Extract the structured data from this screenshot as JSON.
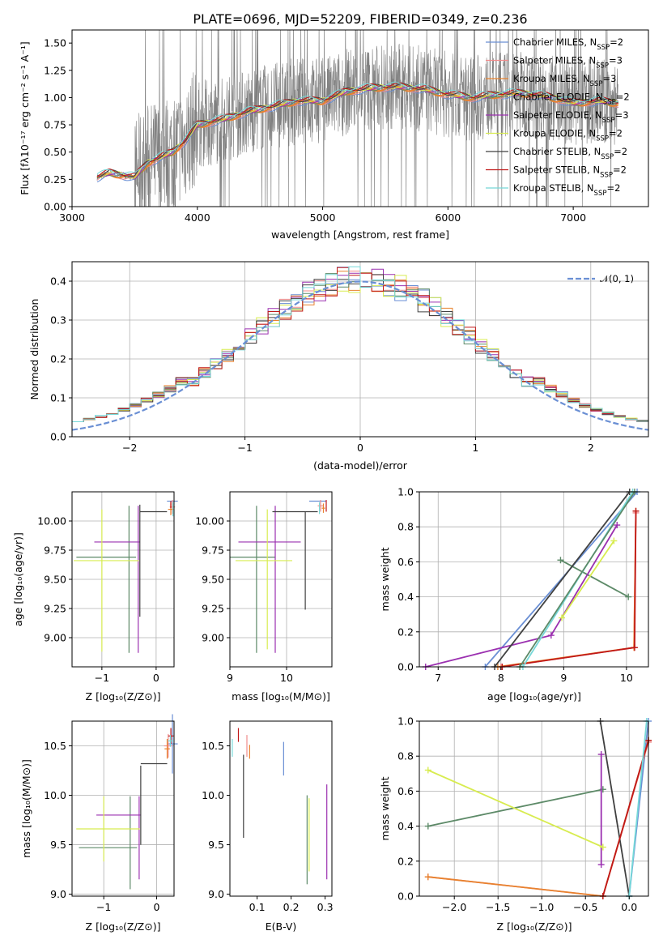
{
  "chart_data": [
    {
      "id": "spectrum",
      "type": "line",
      "title": "PLATE=0696, MJD=52209, FIBERID=0349, z=0.236",
      "xlabel": "wavelength [Angstrom, rest frame]",
      "ylabel": "Flux [fλ10⁻¹⁷ erg cm⁻² s⁻¹ A⁻¹]",
      "xlim": [
        3000,
        7600
      ],
      "ylim": [
        0,
        1.62
      ],
      "xticks": [
        3000,
        4000,
        5000,
        6000,
        7000
      ],
      "yticks": [
        0.0,
        0.25,
        0.5,
        0.75,
        1.0,
        1.25,
        1.5
      ],
      "grid": false,
      "legend_placement": "right",
      "continuum_nodes": [
        [
          3200,
          0.27
        ],
        [
          3300,
          0.31
        ],
        [
          3500,
          0.27
        ],
        [
          3600,
          0.4
        ],
        [
          3800,
          0.5
        ],
        [
          3900,
          0.6
        ],
        [
          4000,
          0.75
        ],
        [
          4200,
          0.8
        ],
        [
          4400,
          0.87
        ],
        [
          4600,
          0.92
        ],
        [
          4800,
          0.97
        ],
        [
          5000,
          0.97
        ],
        [
          5200,
          1.06
        ],
        [
          5400,
          1.09
        ],
        [
          5600,
          1.1
        ],
        [
          5800,
          1.08
        ],
        [
          6000,
          1.03
        ],
        [
          6200,
          1.0
        ],
        [
          6400,
          1.03
        ],
        [
          6600,
          1.04
        ],
        [
          6800,
          1.01
        ],
        [
          7000,
          0.95
        ],
        [
          7200,
          0.97
        ],
        [
          7350,
          0.95
        ]
      ],
      "series": [
        {
          "name": "Chabrier MILES, N",
          "sub": "SSP",
          "suffix": "=2",
          "color": "#6a8fd4"
        },
        {
          "name": "Salpeter MILES, N",
          "sub": "SSP",
          "suffix": "=3",
          "color": "#f08c8c"
        },
        {
          "name": "Kroupa MILES, N",
          "sub": "SSP",
          "suffix": "=3",
          "color": "#e8822e"
        },
        {
          "name": "Chabrier ELODIE, N",
          "sub": "SSP",
          "suffix": "=2",
          "color": "#5d8a68"
        },
        {
          "name": "Salpeter ELODIE, N",
          "sub": "SSP",
          "suffix": "=3",
          "color": "#9b30b0"
        },
        {
          "name": "Kroupa ELODIE, N",
          "sub": "SSP",
          "suffix": "=2",
          "color": "#d8ec50"
        },
        {
          "name": "Chabrier STELIB, N",
          "sub": "SSP",
          "suffix": "=2",
          "color": "#404040"
        },
        {
          "name": "Salpeter STELIB, N",
          "sub": "SSP",
          "suffix": "=2",
          "color": "#c01818"
        },
        {
          "name": "Kroupa STELIB, N",
          "sub": "SSP",
          "suffix": "=2",
          "color": "#76d8d8"
        }
      ]
    },
    {
      "id": "residuals",
      "type": "histogram",
      "xlabel": "(data-model)/error",
      "ylabel": "Normed distribution",
      "xlim": [
        -2.5,
        2.5
      ],
      "ylim": [
        0,
        0.45
      ],
      "xticks": [
        -2,
        -1,
        0,
        1,
        2
      ],
      "yticks": [
        0.0,
        0.1,
        0.2,
        0.3,
        0.4
      ],
      "grid": true,
      "bin_width": 0.1,
      "legend": "𝒩(0, 1)",
      "gauss_color": "#6a8fd4",
      "series_colors": [
        "#6a8fd4",
        "#f08c8c",
        "#e8822e",
        "#5d8a68",
        "#9b30b0",
        "#d8ec50",
        "#404040",
        "#c01818",
        "#76d8d8"
      ]
    },
    {
      "id": "age_vs_Z",
      "type": "errorbar",
      "xlabel": "Z [log₁₀(Z/Z⊙)]",
      "ylabel": "age  [log₁₀(age/yr)]",
      "xlim": [
        -1.55,
        0.33
      ],
      "ylim": [
        8.75,
        10.25
      ],
      "xticks": [
        -1,
        0
      ],
      "yticks": [
        9.0,
        9.25,
        9.5,
        9.75,
        10.0
      ],
      "grid": true,
      "points": [
        {
          "x": 0.3,
          "xerr": 0.1,
          "y": 10.17,
          "yerr": 0.0,
          "color": "#6a8fd4"
        },
        {
          "x": 0.3,
          "xerr": 0.05,
          "y": 10.12,
          "yerr": 0.06,
          "color": "#f08c8c"
        },
        {
          "x": 0.27,
          "xerr": 0.05,
          "y": 10.1,
          "yerr": 0.05,
          "color": "#e8822e"
        },
        {
          "x": -0.92,
          "xerr": 0.55,
          "y": 9.69,
          "yerr": 0.0,
          "color": "#5d8a68"
        },
        {
          "x": -0.5,
          "xerr": 0.0,
          "y": 9.5,
          "yerr": 0.63,
          "color": "#5d8a68"
        },
        {
          "x": -0.72,
          "xerr": 0.42,
          "y": 9.82,
          "yerr": 0.0,
          "color": "#9b30b0"
        },
        {
          "x": -0.33,
          "xerr": 0.0,
          "y": 9.5,
          "yerr": 0.63,
          "color": "#9b30b0"
        },
        {
          "x": -0.92,
          "xerr": 0.6,
          "y": 9.66,
          "yerr": 0.0,
          "color": "#d8ec50"
        },
        {
          "x": -1.0,
          "xerr": 0.0,
          "y": 9.49,
          "yerr": 0.61,
          "color": "#d8ec50"
        },
        {
          "x": -0.3,
          "xerr": 0.0,
          "y": 9.66,
          "yerr": 0.48,
          "color": "#404040"
        },
        {
          "x": -0.05,
          "xerr": 0.25,
          "y": 10.08,
          "yerr": 0.0,
          "color": "#404040"
        },
        {
          "x": 0.27,
          "xerr": 0.0,
          "y": 10.14,
          "yerr": 0.03,
          "color": "#c01818"
        },
        {
          "x": 0.31,
          "xerr": 0.0,
          "y": 10.1,
          "yerr": 0.06,
          "color": "#76d8d8"
        }
      ]
    },
    {
      "id": "age_vs_mass",
      "type": "errorbar",
      "xlabel": "mass [log₁₀(M/M⊙)]",
      "ylabel": "",
      "xlim": [
        9.0,
        10.8
      ],
      "ylim": [
        8.75,
        10.25
      ],
      "xticks": [
        9,
        10
      ],
      "yticks": [
        9.0,
        9.25,
        9.5,
        9.75,
        10.0
      ],
      "grid": true,
      "points": [
        {
          "x": 10.55,
          "xerr": 0.15,
          "y": 10.17,
          "yerr": 0.0,
          "color": "#6a8fd4"
        },
        {
          "x": 10.6,
          "xerr": 0.05,
          "y": 10.13,
          "yerr": 0.05,
          "color": "#f08c8c"
        },
        {
          "x": 10.65,
          "xerr": 0.03,
          "y": 10.11,
          "yerr": 0.04,
          "color": "#e8822e"
        },
        {
          "x": 9.47,
          "xerr": 0.0,
          "y": 9.5,
          "yerr": 0.63,
          "color": "#5d8a68"
        },
        {
          "x": 9.4,
          "xerr": 0.4,
          "y": 9.69,
          "yerr": 0.0,
          "color": "#5d8a68"
        },
        {
          "x": 9.7,
          "xerr": 0.55,
          "y": 9.82,
          "yerr": 0.0,
          "color": "#9b30b0"
        },
        {
          "x": 9.8,
          "xerr": 0.0,
          "y": 9.5,
          "yerr": 0.63,
          "color": "#9b30b0"
        },
        {
          "x": 9.66,
          "xerr": 0.0,
          "y": 9.5,
          "yerr": 0.6,
          "color": "#d8ec50"
        },
        {
          "x": 9.6,
          "xerr": 0.5,
          "y": 9.66,
          "yerr": 0.0,
          "color": "#d8ec50"
        },
        {
          "x": 10.33,
          "xerr": 0.0,
          "y": 9.66,
          "yerr": 0.42,
          "color": "#404040"
        },
        {
          "x": 10.15,
          "xerr": 0.4,
          "y": 10.08,
          "yerr": 0.0,
          "color": "#404040"
        },
        {
          "x": 10.7,
          "xerr": 0.0,
          "y": 10.13,
          "yerr": 0.05,
          "color": "#c01818"
        },
        {
          "x": 10.58,
          "xerr": 0.0,
          "y": 10.11,
          "yerr": 0.05,
          "color": "#76d8d8"
        }
      ]
    },
    {
      "id": "weight_vs_age",
      "type": "line",
      "xlabel": "age  [log₁₀(age/yr)]",
      "ylabel": "mass weight",
      "xlim": [
        6.7,
        10.35
      ],
      "ylim": [
        0,
        1.0
      ],
      "xticks": [
        7,
        8,
        9,
        10
      ],
      "yticks": [
        0.0,
        0.2,
        0.4,
        0.6,
        0.8,
        1.0
      ],
      "grid": true,
      "series": [
        {
          "color": "#6a8fd4",
          "points": [
            [
              7.75,
              0.0
            ],
            [
              10.17,
              1.0
            ]
          ]
        },
        {
          "color": "#f08c8c",
          "points": [
            [
              8.0,
              0.0
            ],
            [
              10.12,
              0.11
            ],
            [
              10.15,
              0.88
            ]
          ]
        },
        {
          "color": "#e8822e",
          "points": [
            [
              7.95,
              0.0
            ],
            [
              10.12,
              0.11
            ],
            [
              10.15,
              0.89
            ]
          ]
        },
        {
          "color": "#5d8a68",
          "points": [
            [
              8.95,
              0.61
            ],
            [
              10.03,
              0.4
            ]
          ]
        },
        {
          "color": "#9b30b0",
          "points": [
            [
              6.8,
              0.0
            ],
            [
              8.8,
              0.18
            ],
            [
              9.85,
              0.81
            ]
          ]
        },
        {
          "color": "#d8ec50",
          "points": [
            [
              8.97,
              0.28
            ],
            [
              9.8,
              0.72
            ]
          ]
        },
        {
          "color": "#404040",
          "points": [
            [
              7.9,
              0.0
            ],
            [
              10.05,
              1.0
            ]
          ]
        },
        {
          "color": "#c01818",
          "points": [
            [
              8.02,
              0.0
            ],
            [
              10.13,
              0.11
            ],
            [
              10.15,
              0.89
            ]
          ]
        },
        {
          "color": "#76d8d8",
          "points": [
            [
              8.35,
              0.0
            ],
            [
              10.1,
              1.0
            ]
          ]
        },
        {
          "color": "#5d8a68",
          "points": [
            [
              8.3,
              0.0
            ],
            [
              10.13,
              1.0
            ]
          ]
        }
      ]
    },
    {
      "id": "mass_vs_Z",
      "type": "errorbar",
      "xlabel": "Z [log₁₀(Z/Z⊙)]",
      "ylabel": "mass [log₁₀(M/M⊙)]",
      "xlim": [
        -1.6,
        0.33
      ],
      "ylim": [
        8.98,
        10.75
      ],
      "xticks": [
        -1,
        0
      ],
      "yticks": [
        9.0,
        9.5,
        10.0,
        10.5
      ],
      "grid": true,
      "points": [
        {
          "x": 0.3,
          "xerr": 0.1,
          "y": 10.52,
          "yerr": 0.3,
          "color": "#6a8fd4"
        },
        {
          "x": 0.22,
          "xerr": 0.08,
          "y": 10.5,
          "yerr": 0.12,
          "color": "#f08c8c"
        },
        {
          "x": 0.2,
          "xerr": 0.05,
          "y": 10.47,
          "yerr": 0.1,
          "color": "#e8822e"
        },
        {
          "x": -0.92,
          "xerr": 0.55,
          "y": 9.47,
          "yerr": 0.0,
          "color": "#5d8a68"
        },
        {
          "x": -0.5,
          "xerr": 0.0,
          "y": 9.52,
          "yerr": 0.47,
          "color": "#5d8a68"
        },
        {
          "x": -0.72,
          "xerr": 0.42,
          "y": 9.8,
          "yerr": 0.0,
          "color": "#9b30b0"
        },
        {
          "x": -0.33,
          "xerr": 0.0,
          "y": 9.57,
          "yerr": 0.42,
          "color": "#9b30b0"
        },
        {
          "x": -0.92,
          "xerr": 0.6,
          "y": 9.66,
          "yerr": 0.0,
          "color": "#d8ec50"
        },
        {
          "x": -1.0,
          "xerr": 0.0,
          "y": 9.66,
          "yerr": 0.33,
          "color": "#d8ec50"
        },
        {
          "x": -0.3,
          "xerr": 0.0,
          "y": 9.9,
          "yerr": 0.4,
          "color": "#404040"
        },
        {
          "x": -0.05,
          "xerr": 0.25,
          "y": 10.32,
          "yerr": 0.0,
          "color": "#404040"
        },
        {
          "x": 0.27,
          "xerr": 0.05,
          "y": 10.6,
          "yerr": 0.08,
          "color": "#c01818"
        },
        {
          "x": 0.26,
          "xerr": 0.05,
          "y": 10.55,
          "yerr": 0.06,
          "color": "#76d8d8"
        }
      ]
    },
    {
      "id": "mass_vs_ebv",
      "type": "errorbar",
      "xlabel": "E(B-V)",
      "ylabel": "",
      "xlim": [
        0.02,
        0.32
      ],
      "ylim": [
        8.98,
        10.75
      ],
      "xticks": [
        0.1,
        0.2,
        0.3
      ],
      "yticks": [
        9.0,
        9.5,
        10.0,
        10.5
      ],
      "grid": false,
      "points": [
        {
          "x": 0.027,
          "xerr": 0.0,
          "y": 10.48,
          "yerr": 0.09,
          "color": "#76d8d8"
        },
        {
          "x": 0.045,
          "xerr": 0.0,
          "y": 10.61,
          "yerr": 0.07,
          "color": "#c01818"
        },
        {
          "x": 0.06,
          "xerr": 0.0,
          "y": 9.99,
          "yerr": 0.42,
          "color": "#404040"
        },
        {
          "x": 0.07,
          "xerr": 0.0,
          "y": 10.5,
          "yerr": 0.11,
          "color": "#f08c8c"
        },
        {
          "x": 0.078,
          "xerr": 0.0,
          "y": 10.44,
          "yerr": 0.07,
          "color": "#e8822e"
        },
        {
          "x": 0.178,
          "xerr": 0.0,
          "y": 10.37,
          "yerr": 0.17,
          "color": "#6a8fd4"
        },
        {
          "x": 0.247,
          "xerr": 0.0,
          "y": 9.55,
          "yerr": 0.45,
          "color": "#5d8a68"
        },
        {
          "x": 0.253,
          "xerr": 0.0,
          "y": 9.6,
          "yerr": 0.37,
          "color": "#d8ec50"
        },
        {
          "x": 0.305,
          "xerr": 0.0,
          "y": 9.63,
          "yerr": 0.48,
          "color": "#9b30b0"
        }
      ]
    },
    {
      "id": "weight_vs_Z",
      "type": "line",
      "xlabel": "Z [log₁₀(Z/Z⊙)]",
      "ylabel": "mass weight",
      "xlim": [
        -2.4,
        0.22
      ],
      "ylim": [
        0,
        1.0
      ],
      "xticks": [
        -2.0,
        -1.5,
        -1.0,
        -0.5,
        0.0
      ],
      "yticks": [
        0.0,
        0.2,
        0.4,
        0.6,
        0.8,
        1.0
      ],
      "grid": true,
      "series": [
        {
          "color": "#6a8fd4",
          "points": [
            [
              0.0,
              0.0
            ],
            [
              0.22,
              1.0
            ]
          ]
        },
        {
          "color": "#f08c8c",
          "points": [
            [
              -2.3,
              0.11
            ],
            [
              -0.3,
              0.0
            ],
            [
              0.22,
              0.88
            ]
          ]
        },
        {
          "color": "#e8822e",
          "points": [
            [
              -2.3,
              0.11
            ],
            [
              -0.3,
              0.0
            ],
            [
              0.22,
              0.89
            ]
          ]
        },
        {
          "color": "#5d8a68",
          "points": [
            [
              -2.3,
              0.4
            ],
            [
              -0.3,
              0.61
            ]
          ]
        },
        {
          "color": "#9b30b0",
          "points": [
            [
              -0.32,
              0.18
            ],
            [
              -0.32,
              0.81
            ]
          ]
        },
        {
          "color": "#d8ec50",
          "points": [
            [
              -2.3,
              0.72
            ],
            [
              -0.3,
              0.28
            ]
          ]
        },
        {
          "color": "#404040",
          "points": [
            [
              -0.33,
              1.0
            ],
            [
              0.0,
              0.0
            ]
          ]
        },
        {
          "color": "#c01818",
          "points": [
            [
              -0.3,
              0.0
            ],
            [
              0.22,
              0.89
            ]
          ]
        },
        {
          "color": "#76d8d8",
          "points": [
            [
              0.0,
              0.0
            ],
            [
              0.2,
              1.0
            ]
          ]
        }
      ]
    }
  ]
}
